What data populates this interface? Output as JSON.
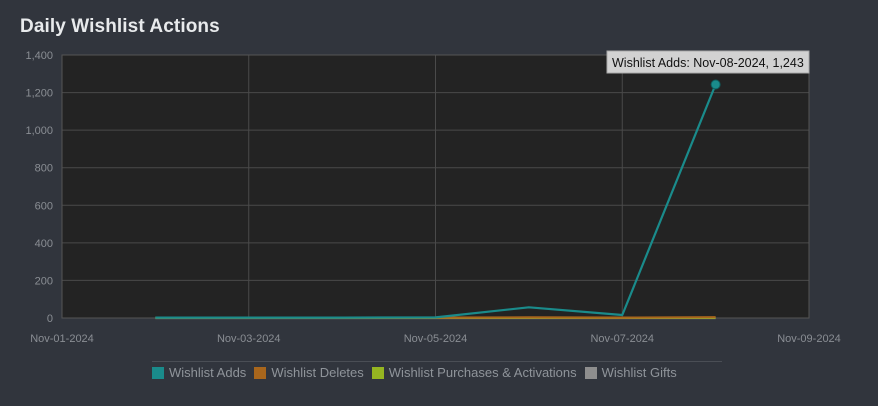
{
  "page": {
    "title": "Daily Wishlist Actions"
  },
  "tooltip": {
    "text": "Wishlist Adds: Nov-08-2024, 1,243"
  },
  "chart_data": {
    "type": "line",
    "title": "Daily Wishlist Actions",
    "xlabel": "",
    "ylabel": "",
    "x_ticks": [
      "Nov-01-2024",
      "Nov-03-2024",
      "Nov-05-2024",
      "Nov-07-2024",
      "Nov-09-2024"
    ],
    "y_ticks": [
      "0",
      "200",
      "400",
      "600",
      "800",
      "1,000",
      "1,200",
      "1,400"
    ],
    "xlim": [
      "Nov-01-2024",
      "Nov-09-2024"
    ],
    "ylim": [
      0,
      1400
    ],
    "grid": true,
    "legend_position": "bottom",
    "series": [
      {
        "name": "Wishlist Adds",
        "color": "#1a8b8b",
        "x": [
          "Nov-02-2024",
          "Nov-03-2024",
          "Nov-04-2024",
          "Nov-05-2024",
          "Nov-06-2024",
          "Nov-07-2024",
          "Nov-08-2024"
        ],
        "values": [
          2,
          2,
          2,
          3,
          57,
          16,
          1243
        ]
      },
      {
        "name": "Wishlist Deletes",
        "color": "#a8661c",
        "x": [
          "Nov-02-2024",
          "Nov-03-2024",
          "Nov-04-2024",
          "Nov-05-2024",
          "Nov-06-2024",
          "Nov-07-2024",
          "Nov-08-2024"
        ],
        "values": [
          2,
          2,
          2,
          2,
          3,
          2,
          4
        ]
      },
      {
        "name": "Wishlist Purchases & Activations",
        "color": "#95b521",
        "x": [
          "Nov-02-2024",
          "Nov-03-2024",
          "Nov-04-2024",
          "Nov-05-2024",
          "Nov-06-2024",
          "Nov-07-2024",
          "Nov-08-2024"
        ],
        "values": [
          1,
          1,
          1,
          1,
          1,
          1,
          1
        ]
      },
      {
        "name": "Wishlist Gifts",
        "color": "#8e8e8e",
        "x": [
          "Nov-02-2024",
          "Nov-03-2024",
          "Nov-04-2024",
          "Nov-05-2024",
          "Nov-06-2024",
          "Nov-07-2024",
          "Nov-08-2024"
        ],
        "values": [
          0,
          0,
          0,
          0,
          0,
          0,
          0
        ]
      }
    ],
    "highlight": {
      "series": "Wishlist Adds",
      "x": "Nov-08-2024",
      "y": 1243
    }
  }
}
